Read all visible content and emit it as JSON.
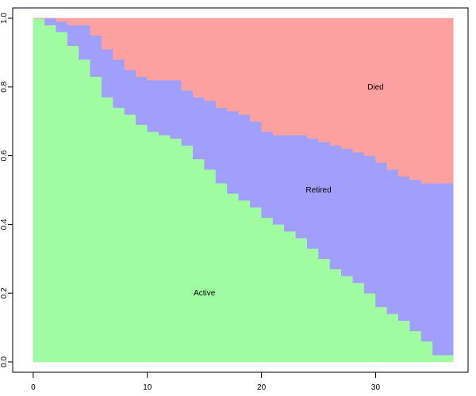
{
  "chart_data": {
    "type": "area",
    "stacked": true,
    "step": true,
    "title": "",
    "xlabel": "",
    "ylabel": "",
    "xlim": [
      -1.8,
      38.1
    ],
    "ylim": [
      -0.03,
      1.03
    ],
    "xticks": [
      0,
      10,
      20,
      30
    ],
    "yticks": [
      0,
      0.2,
      0.4,
      0.6,
      0.8,
      1
    ],
    "ytick_labels": [
      "0.0",
      "0.2",
      "0.4",
      "0.6",
      "0.8",
      "1.0"
    ],
    "series": [
      {
        "key": "active",
        "color": "#a0fca0",
        "label_text": "Active",
        "label_pos": [
          15,
          0.2
        ],
        "x": [
          0,
          1,
          2,
          3,
          4,
          5,
          6,
          7,
          8,
          9,
          10,
          11,
          12,
          13,
          14,
          15,
          16,
          17,
          18,
          19,
          20,
          21,
          22,
          23,
          24,
          25,
          26,
          27,
          28,
          29,
          30,
          31,
          32,
          33,
          34,
          35,
          36
        ],
        "y": [
          1.0,
          0.98,
          0.96,
          0.92,
          0.88,
          0.83,
          0.77,
          0.74,
          0.72,
          0.69,
          0.67,
          0.66,
          0.65,
          0.63,
          0.59,
          0.56,
          0.52,
          0.49,
          0.47,
          0.45,
          0.42,
          0.4,
          0.38,
          0.36,
          0.33,
          0.3,
          0.27,
          0.25,
          0.23,
          0.2,
          0.16,
          0.14,
          0.12,
          0.09,
          0.06,
          0.02,
          0.02
        ]
      },
      {
        "key": "retired",
        "color": "#a0a0fc",
        "label_text": "Retired",
        "label_pos": [
          25,
          0.5
        ],
        "x": [
          0,
          1,
          2,
          3,
          4,
          5,
          6,
          7,
          8,
          9,
          10,
          11,
          12,
          13,
          14,
          15,
          16,
          17,
          18,
          19,
          20,
          21,
          22,
          23,
          24,
          25,
          26,
          27,
          28,
          29,
          30,
          31,
          32,
          33,
          34,
          35,
          36
        ],
        "y": [
          0.0,
          0.02,
          0.03,
          0.06,
          0.1,
          0.12,
          0.14,
          0.14,
          0.13,
          0.14,
          0.15,
          0.16,
          0.17,
          0.16,
          0.18,
          0.2,
          0.22,
          0.24,
          0.25,
          0.25,
          0.25,
          0.26,
          0.28,
          0.3,
          0.32,
          0.34,
          0.36,
          0.37,
          0.38,
          0.4,
          0.42,
          0.42,
          0.42,
          0.44,
          0.46,
          0.5,
          0.5
        ]
      },
      {
        "key": "died",
        "color": "#fca0a0",
        "label_text": "Died",
        "label_pos": [
          30,
          0.8
        ],
        "x": [
          0,
          1,
          2,
          3,
          4,
          5,
          6,
          7,
          8,
          9,
          10,
          11,
          12,
          13,
          14,
          15,
          16,
          17,
          18,
          19,
          20,
          21,
          22,
          23,
          24,
          25,
          26,
          27,
          28,
          29,
          30,
          31,
          32,
          33,
          34,
          35,
          36
        ],
        "y": [
          0.0,
          0.0,
          0.01,
          0.02,
          0.02,
          0.05,
          0.09,
          0.12,
          0.15,
          0.17,
          0.18,
          0.18,
          0.18,
          0.21,
          0.23,
          0.24,
          0.26,
          0.27,
          0.28,
          0.3,
          0.33,
          0.34,
          0.34,
          0.34,
          0.35,
          0.36,
          0.37,
          0.38,
          0.39,
          0.4,
          0.42,
          0.44,
          0.46,
          0.47,
          0.48,
          0.48,
          0.48
        ]
      }
    ],
    "x_end": 36.8
  }
}
